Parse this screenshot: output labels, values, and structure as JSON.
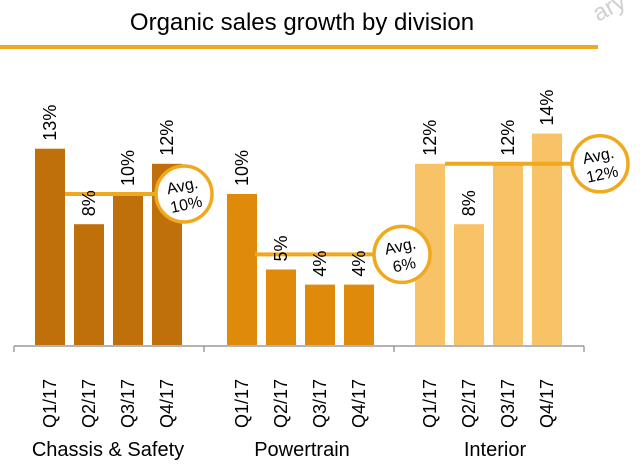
{
  "chart_data": {
    "type": "bar",
    "title": "Organic sales growth by division",
    "corner_text": "ary",
    "unit": "%",
    "ylim": [
      0,
      15
    ],
    "groups": [
      {
        "name": "Chassis & Safety",
        "color": "#c0700a",
        "categories": [
          "Q1/17",
          "Q2/17",
          "Q3/17",
          "Q4/17"
        ],
        "values": [
          13,
          8,
          10,
          12
        ],
        "labels": [
          "13%",
          "8%",
          "10%",
          "12%"
        ],
        "average": 10,
        "avg_label": "Avg.",
        "avg_value_label": "10%"
      },
      {
        "name": "Powertrain",
        "color": "#e08a0c",
        "categories": [
          "Q1/17",
          "Q2/17",
          "Q3/17",
          "Q4/17"
        ],
        "values": [
          10,
          5,
          4,
          4
        ],
        "labels": [
          "10%",
          "5%",
          "4%",
          "4%"
        ],
        "average": 6,
        "avg_label": "Avg.",
        "avg_value_label": "6%"
      },
      {
        "name": "Interior",
        "color": "#f8c266",
        "categories": [
          "Q1/17",
          "Q2/17",
          "Q3/17",
          "Q4/17"
        ],
        "values": [
          12,
          8,
          12,
          14
        ],
        "labels": [
          "12%",
          "8%",
          "12%",
          "14%"
        ],
        "average": 12,
        "avg_label": "Avg.",
        "avg_value_label": "12%"
      }
    ],
    "colors": {
      "accent_line": "#f0a81e",
      "axis": "#888888",
      "text": "#000000"
    }
  }
}
